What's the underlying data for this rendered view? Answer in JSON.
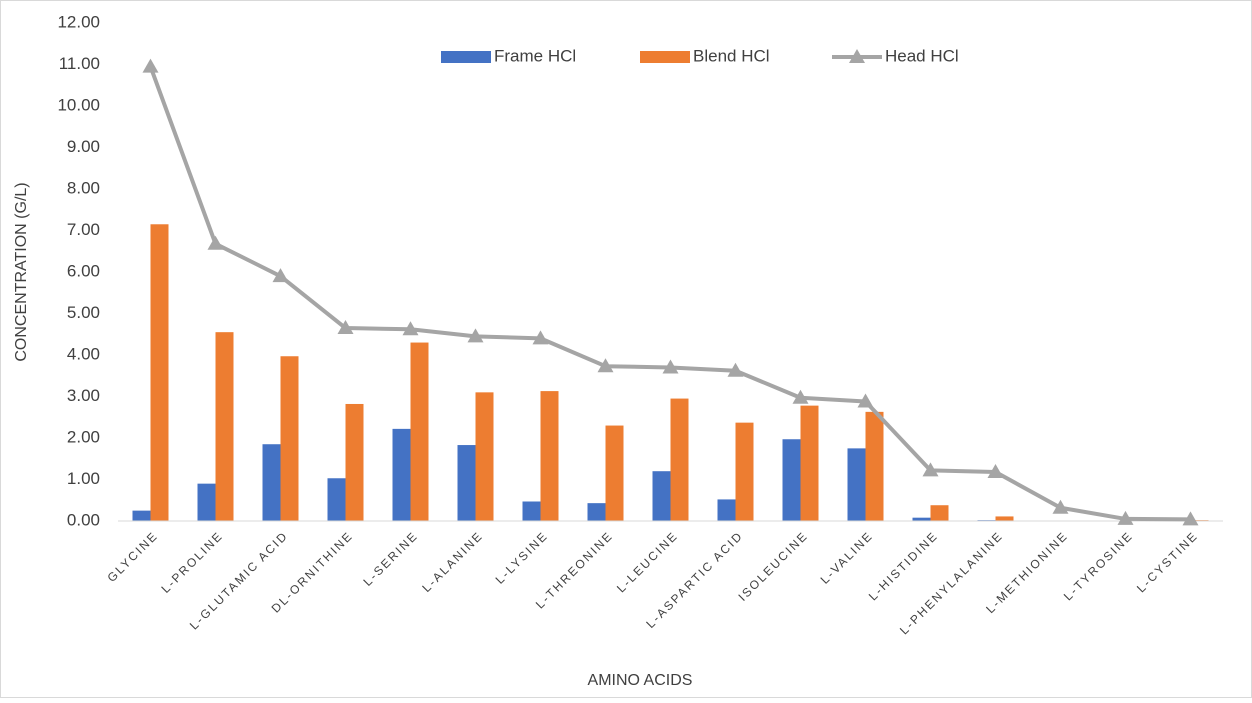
{
  "chart_data": {
    "type": "bar",
    "x_label": "AMINO ACIDS",
    "y_label": "CONCENTRATION (G/L)",
    "categories": [
      "GLYCINE",
      "L-PROLINE",
      "L-GLUTAMIC ACID",
      "DL-ORNITHINE",
      "L-SERINE",
      "L-ALANINE",
      "L-LYSINE",
      "L-THREONINE",
      "L-LEUCINE",
      "L-ASPARTIC ACID",
      "ISOLEUCINE",
      "L-VALINE",
      "L-HISTIDINE",
      "L-PHENYLALANINE",
      "L-METHIONINE",
      "L-TYROSINE",
      "L-CYSTINE"
    ],
    "series": [
      {
        "name": "Frame HCl",
        "type": "bar",
        "color": "#4472c4",
        "values": [
          0.25,
          0.9,
          1.85,
          1.03,
          2.22,
          1.83,
          0.47,
          0.43,
          1.2,
          0.52,
          1.97,
          1.75,
          0.08,
          0.02,
          0,
          0,
          0
        ]
      },
      {
        "name": "Blend HCl",
        "type": "bar",
        "color": "#ed7d31",
        "values": [
          7.15,
          4.55,
          3.97,
          2.82,
          4.3,
          3.1,
          3.13,
          2.3,
          2.95,
          2.37,
          2.78,
          2.63,
          0.38,
          0.11,
          0.01,
          0.01,
          0.02
        ]
      },
      {
        "name": "Head HCl",
        "type": "line",
        "color": "#a5a5a5",
        "values": [
          10.95,
          6.68,
          5.9,
          4.65,
          4.62,
          4.45,
          4.4,
          3.73,
          3.7,
          3.62,
          2.97,
          2.88,
          1.22,
          1.18,
          0.32,
          0.05,
          0.04
        ]
      }
    ],
    "ylim": [
      0,
      12
    ],
    "yticks": [
      {
        "value": 0,
        "label": "0.00"
      },
      {
        "value": 1,
        "label": "1.00"
      },
      {
        "value": 2,
        "label": "2.00"
      },
      {
        "value": 3,
        "label": "3.00"
      },
      {
        "value": 4,
        "label": "4.00"
      },
      {
        "value": 5,
        "label": "5.00"
      },
      {
        "value": 6,
        "label": "6.00"
      },
      {
        "value": 7,
        "label": "7.00"
      },
      {
        "value": 8,
        "label": "8.00"
      },
      {
        "value": 9,
        "label": "9.00"
      },
      {
        "value": 10,
        "label": "10.00"
      },
      {
        "value": 11,
        "label": "11.00"
      },
      {
        "value": 12,
        "label": "12.00"
      }
    ],
    "grid": false,
    "legend": "top"
  }
}
